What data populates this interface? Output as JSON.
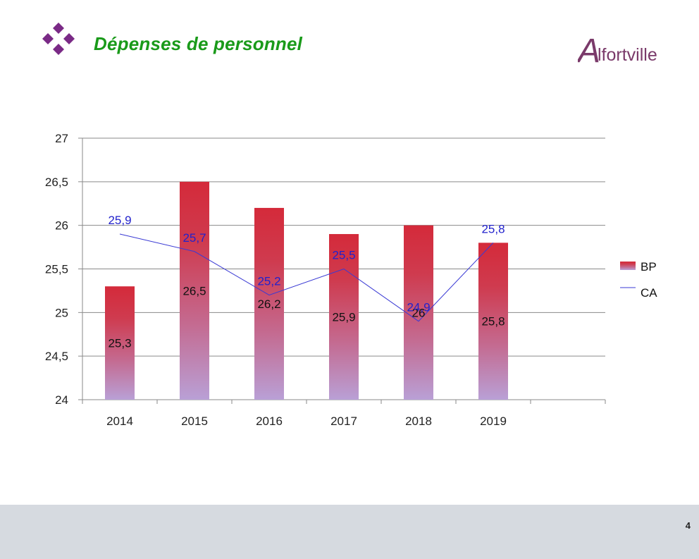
{
  "page": {
    "title": "Dépenses de personnel",
    "logo_text": "Alfortville",
    "page_number": "4"
  },
  "colors": {
    "title": "#1a9a1a",
    "diamond": "#7a2a86",
    "logo": "#7a3a6a",
    "bar_top": "#d42a3a",
    "bar_bottom": "#b9a0d6",
    "line": "#3a3ad4",
    "line_label": "#2222cc",
    "footer": "#d6dae0"
  },
  "chart_data": {
    "type": "bar",
    "categories": [
      "2014",
      "2015",
      "2016",
      "2017",
      "2018",
      "2019"
    ],
    "series": [
      {
        "name": "BP",
        "type": "bar",
        "values": [
          25.3,
          26.5,
          26.2,
          25.9,
          26,
          25.8
        ],
        "labels": [
          "25,3",
          "26,5",
          "26,2",
          "25,9",
          "26",
          "25,8"
        ]
      },
      {
        "name": "CA",
        "type": "line",
        "values": [
          25.9,
          25.7,
          25.2,
          25.5,
          24.9,
          25.8
        ],
        "labels": [
          "25,9",
          "25,7",
          "25,2",
          "25,5",
          "24,9",
          "25,8"
        ]
      }
    ],
    "ylim": [
      24,
      27
    ],
    "yticks": [
      24,
      24.5,
      25,
      25.5,
      26,
      26.5,
      27
    ],
    "ytick_labels": [
      "24",
      "24,5",
      "25",
      "25,5",
      "26",
      "26,5",
      "27"
    ],
    "grid": true,
    "legend": "right"
  }
}
